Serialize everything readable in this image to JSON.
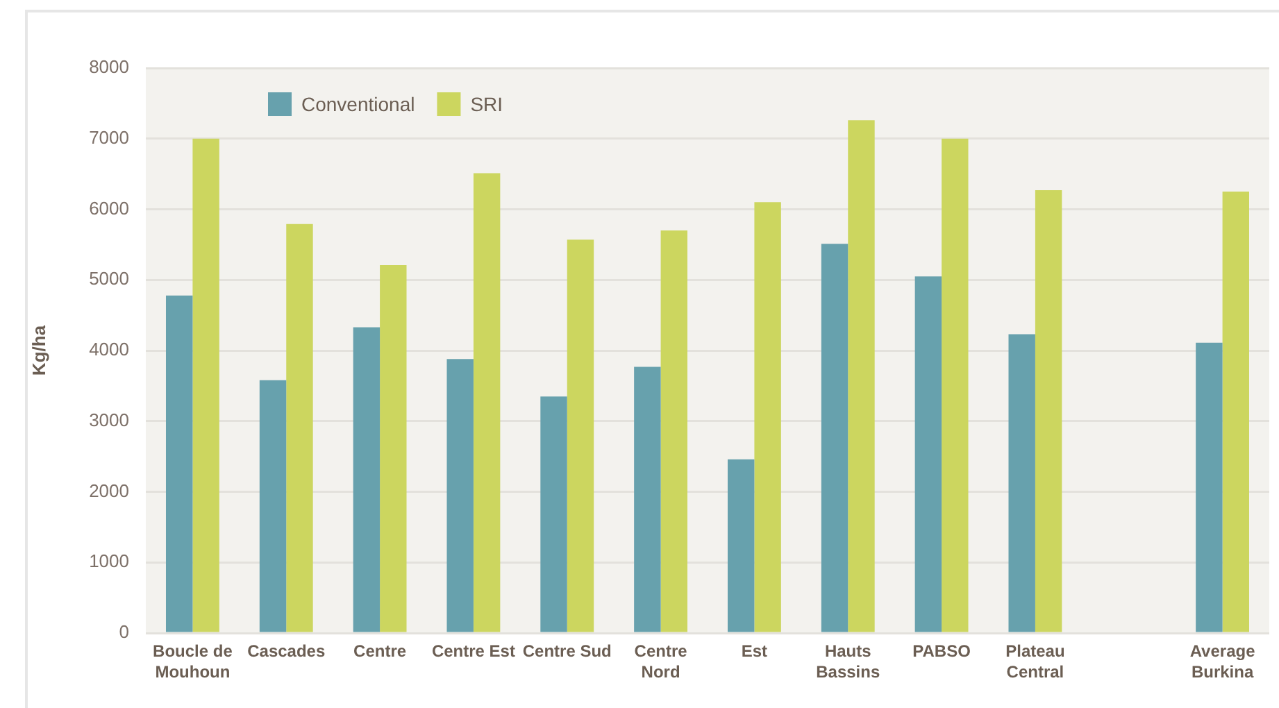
{
  "chart_data": {
    "type": "bar",
    "ylabel": "Kg/ha",
    "categories": [
      "Boucle de Mouhoun",
      "Cascades",
      "Centre",
      "Centre Est",
      "Centre Sud",
      "Centre Nord",
      "Est",
      "Hauts Bassins",
      "PABSO",
      "Plateau Central",
      null,
      "Average Burkina"
    ],
    "series": [
      {
        "name": "Conventional",
        "color": "#67a1ad",
        "values": [
          4780,
          3580,
          4330,
          3880,
          3350,
          3770,
          2460,
          5510,
          5050,
          4230,
          null,
          4110
        ]
      },
      {
        "name": "SRI",
        "color": "#ccd65f",
        "values": [
          7000,
          5790,
          5210,
          6510,
          5570,
          5700,
          6100,
          7260,
          7000,
          6270,
          null,
          6250
        ]
      }
    ],
    "ylim": [
      0,
      8000
    ],
    "yticks": [
      0,
      1000,
      2000,
      3000,
      4000,
      5000,
      6000,
      7000,
      8000
    ],
    "grid": "y",
    "legend": "top left"
  }
}
